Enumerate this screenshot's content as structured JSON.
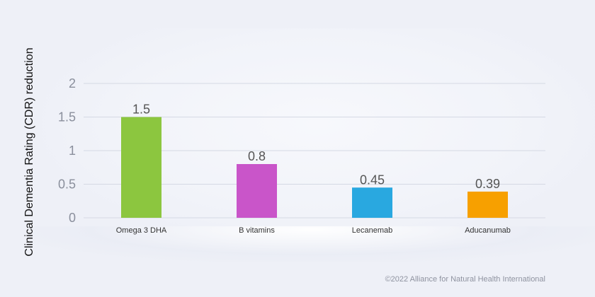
{
  "chart_data": {
    "type": "bar",
    "categories": [
      "Omega 3 DHA",
      "B vitamins",
      "Lecanemab",
      "Aducanumab"
    ],
    "values": [
      1.5,
      0.8,
      0.45,
      0.39
    ],
    "data_labels": [
      "1.5",
      "0.8",
      "0.45",
      "0.39"
    ],
    "bar_colors": [
      "#8cc63f",
      "#c955c9",
      "#29a8e0",
      "#f7a000"
    ],
    "title": "",
    "xlabel": "",
    "ylabel": "Clinical Dementia Rating (CDR) reduction",
    "ylim": [
      0,
      2
    ],
    "yticks": [
      0,
      0.5,
      1,
      1.5,
      2
    ],
    "ytick_labels": [
      "0",
      "0.5",
      "1",
      "1.5",
      "2"
    ],
    "grid": true,
    "legend": "none"
  },
  "footer": {
    "copyright": "©2022 Alliance for Natural Health International"
  },
  "colors": {
    "background": "#eef0f7",
    "gridline": "#d5d9e4",
    "tick_text": "#8a8f9c",
    "value_text": "#555555"
  }
}
